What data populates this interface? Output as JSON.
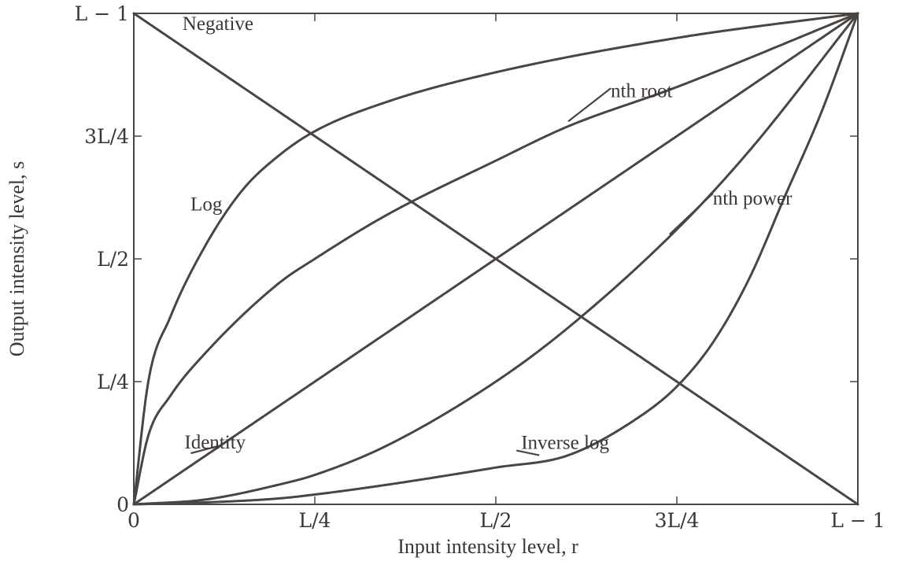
{
  "chart_data": {
    "type": "line",
    "xlabel": "Input intensity level, r",
    "ylabel": "Output intensity level, s",
    "xlim": [
      0,
      1
    ],
    "ylim": [
      0,
      1
    ],
    "x_ticks": [
      {
        "value": 0,
        "label": "0"
      },
      {
        "value": 0.25,
        "label": "L/4"
      },
      {
        "value": 0.5,
        "label": "L/2"
      },
      {
        "value": 0.75,
        "label": "3L/4"
      },
      {
        "value": 1,
        "label": "L − 1"
      }
    ],
    "y_ticks": [
      {
        "value": 0,
        "label": "0"
      },
      {
        "value": 0.25,
        "label": "L/4"
      },
      {
        "value": 0.5,
        "label": "L/2"
      },
      {
        "value": 0.75,
        "label": "3L/4"
      },
      {
        "value": 1,
        "label": "L − 1"
      }
    ],
    "series": [
      {
        "name": "Negative",
        "x": [
          0,
          0.25,
          0.5,
          0.75,
          1
        ],
        "y": [
          1,
          0.75,
          0.5,
          0.25,
          0
        ]
      },
      {
        "name": "Log",
        "x": [
          0,
          0.02,
          0.05,
          0.1,
          0.15,
          0.2,
          0.25,
          0.35,
          0.5,
          0.75,
          1
        ],
        "y": [
          0,
          0.25,
          0.38,
          0.53,
          0.64,
          0.71,
          0.76,
          0.82,
          0.88,
          0.95,
          1
        ]
      },
      {
        "name": "nth root",
        "x": [
          0,
          0.02,
          0.05,
          0.1,
          0.2,
          0.25,
          0.35,
          0.5,
          0.6,
          0.75,
          1
        ],
        "y": [
          0,
          0.14,
          0.22,
          0.31,
          0.45,
          0.5,
          0.59,
          0.7,
          0.77,
          0.85,
          1
        ]
      },
      {
        "name": "Identity",
        "x": [
          0,
          0.25,
          0.5,
          0.75,
          1
        ],
        "y": [
          0,
          0.25,
          0.5,
          0.75,
          1
        ]
      },
      {
        "name": "nth power",
        "x": [
          0,
          0.1,
          0.2,
          0.25,
          0.35,
          0.5,
          0.6,
          0.75,
          0.85,
          1
        ],
        "y": [
          0,
          0.01,
          0.04,
          0.06,
          0.12,
          0.25,
          0.36,
          0.56,
          0.72,
          1
        ]
      },
      {
        "name": "Inverse log",
        "x": [
          0,
          0.1,
          0.2,
          0.25,
          0.35,
          0.5,
          0.6,
          0.7,
          0.75,
          0.8,
          0.85,
          0.9,
          0.95,
          1
        ],
        "y": [
          0,
          0.004,
          0.012,
          0.02,
          0.04,
          0.075,
          0.1,
          0.18,
          0.24,
          0.33,
          0.46,
          0.63,
          0.8,
          1
        ]
      }
    ],
    "annotations": [
      {
        "text": "Negative",
        "series": "Negative",
        "point": [
          0.04,
          0.96
        ]
      },
      {
        "text": "Log",
        "series": "Log",
        "point": [
          0.11,
          0.6
        ]
      },
      {
        "text": "nth root",
        "series": "nth root",
        "point": [
          0.6,
          0.78
        ]
      },
      {
        "text": "nth power",
        "series": "nth power",
        "point": [
          0.74,
          0.55
        ]
      },
      {
        "text": "Identity",
        "series": "Identity",
        "point": [
          0.12,
          0.12
        ]
      },
      {
        "text": "Inverse log",
        "series": "Inverse log",
        "point": [
          0.56,
          0.1
        ]
      }
    ],
    "grid": false,
    "legend": "none"
  }
}
